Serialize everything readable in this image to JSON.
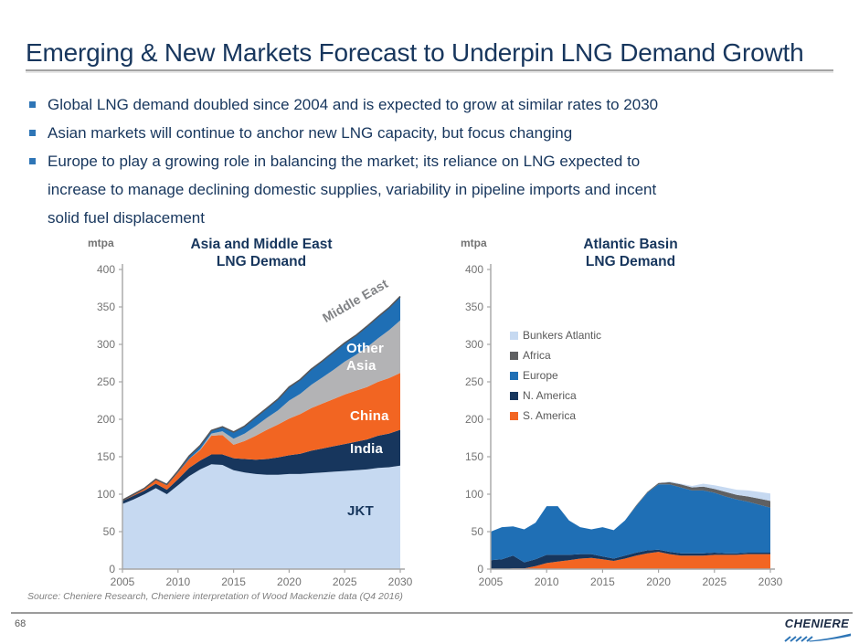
{
  "slide": {
    "title": "Emerging & New Markets Forecast to Underpin LNG Demand Growth",
    "bullets": [
      "Global LNG demand doubled since 2004 and is expected to grow at similar rates to 2030",
      "Asian markets will continue to anchor new LNG capacity, but focus changing",
      "Europe to play a growing role in balancing the market; its reliance on LNG expected to\nincrease to manage declining domestic supplies, variability in pipeline imports and incent\nsolid fuel displacement"
    ],
    "source": "Source: Cheniere Research, Cheniere interpretation of  Wood Mackenzie data (Q4 2016)",
    "page_number": "68",
    "logo_text": "CHENIERE"
  },
  "colors": {
    "navy_text": "#17365D",
    "bullet_blue": "#2E75B6",
    "axis": "#A6A6A6",
    "tick_text": "#737373",
    "top_stroke": "#55565A",
    "brand_orange": "#F26522",
    "brand_blue": "#1F6FB5"
  },
  "chart_data": [
    {
      "type": "area",
      "stacked": true,
      "title": "Asia and Middle East\nLNG Demand",
      "unit_label": "mtpa",
      "xlabel": "",
      "ylabel": "mtpa",
      "ylim": [
        0,
        400
      ],
      "ystep": 50,
      "grid": false,
      "legend_position": "none",
      "top_stroke": "#55565A",
      "x": [
        2005,
        2006,
        2007,
        2008,
        2009,
        2010,
        2011,
        2012,
        2013,
        2014,
        2015,
        2016,
        2017,
        2018,
        2019,
        2020,
        2021,
        2022,
        2023,
        2024,
        2025,
        2026,
        2027,
        2028,
        2029,
        2030
      ],
      "xticks": [
        2005,
        2010,
        2015,
        2020,
        2025,
        2030
      ],
      "series": [
        {
          "name": "JKT",
          "color": "#C6D9F1",
          "values": [
            87,
            93,
            100,
            108,
            100,
            112,
            124,
            133,
            140,
            139,
            132,
            129,
            127,
            126,
            126,
            127,
            127,
            128,
            129,
            130,
            131,
            132,
            133,
            135,
            136,
            138
          ]
        },
        {
          "name": "India",
          "color": "#17365D",
          "values": [
            4,
            5,
            5,
            6,
            6,
            8,
            11,
            12,
            13,
            14,
            16,
            18,
            19,
            21,
            23,
            25,
            27,
            30,
            32,
            34,
            36,
            38,
            40,
            43,
            45,
            48
          ]
        },
        {
          "name": "China",
          "color": "#F26522",
          "values": [
            1,
            2,
            3,
            5,
            6,
            9,
            12,
            14,
            25,
            26,
            18,
            24,
            32,
            39,
            44,
            49,
            53,
            57,
            60,
            63,
            66,
            68,
            70,
            72,
            74,
            76
          ]
        },
        {
          "name": "Other Asia",
          "color": "#B3B3B5",
          "values": [
            0,
            0,
            0,
            0,
            0,
            0,
            0,
            1,
            3,
            5,
            8,
            10,
            13,
            16,
            19,
            24,
            27,
            31,
            35,
            39,
            44,
            48,
            53,
            58,
            64,
            70
          ]
        },
        {
          "name": "Middle East",
          "color": "#1F6FB5",
          "values": [
            0,
            0,
            0,
            1,
            1,
            2,
            4,
            5,
            4,
            6,
            9,
            10,
            12,
            13,
            15,
            18,
            19,
            21,
            22,
            24,
            25,
            26,
            28,
            29,
            30,
            32
          ]
        }
      ]
    },
    {
      "type": "area",
      "stacked": true,
      "title": "Atlantic Basin\nLNG Demand",
      "unit_label": "mtpa",
      "xlabel": "",
      "ylabel": "mtpa",
      "ylim": [
        0,
        400
      ],
      "ystep": 50,
      "grid": false,
      "legend_position": "inside-upper-left",
      "x": [
        2005,
        2006,
        2007,
        2008,
        2009,
        2010,
        2011,
        2012,
        2013,
        2014,
        2015,
        2016,
        2017,
        2018,
        2019,
        2020,
        2021,
        2022,
        2023,
        2024,
        2025,
        2026,
        2027,
        2028,
        2029,
        2030
      ],
      "xticks": [
        2005,
        2010,
        2015,
        2020,
        2025,
        2030
      ],
      "series": [
        {
          "name": "S. America",
          "color": "#F26522",
          "values": [
            0,
            0,
            1,
            1,
            4,
            8,
            10,
            12,
            14,
            15,
            13,
            11,
            14,
            18,
            21,
            23,
            20,
            18,
            18,
            18,
            19,
            19,
            19,
            20,
            20,
            20
          ]
        },
        {
          "name": "N. America",
          "color": "#17365D",
          "values": [
            12,
            13,
            17,
            8,
            9,
            11,
            9,
            7,
            6,
            5,
            4,
            3,
            4,
            4,
            4,
            3,
            3,
            3,
            3,
            3,
            3,
            2,
            2,
            2,
            2,
            2
          ]
        },
        {
          "name": "Europe",
          "color": "#1F6FB5",
          "values": [
            38,
            43,
            39,
            44,
            49,
            65,
            65,
            46,
            36,
            33,
            39,
            38,
            47,
            62,
            77,
            87,
            90,
            88,
            84,
            84,
            80,
            76,
            72,
            68,
            64,
            60
          ]
        },
        {
          "name": "Africa",
          "color": "#5F6062",
          "values": [
            0,
            0,
            0,
            0,
            0,
            0,
            0,
            0,
            0,
            0,
            0,
            0,
            0,
            1,
            1,
            2,
            3,
            4,
            4,
            5,
            5,
            6,
            6,
            7,
            8,
            9
          ]
        },
        {
          "name": "Bunkers Atlantic",
          "color": "#C6D9F1",
          "values": [
            0,
            0,
            0,
            0,
            0,
            0,
            0,
            0,
            0,
            0,
            0,
            0,
            0,
            0,
            0,
            0,
            1,
            1,
            2,
            4,
            5,
            6,
            7,
            8,
            9,
            10
          ]
        }
      ]
    }
  ]
}
